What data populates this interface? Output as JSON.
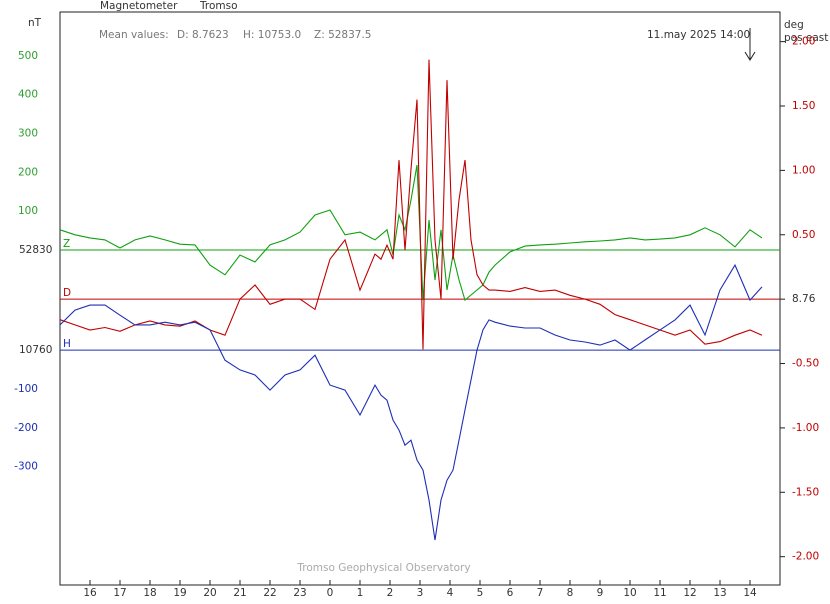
{
  "chart_data": {
    "type": "line",
    "title": "Magnetometer",
    "subtitle": "Tromso",
    "y_label": "nT",
    "y2_label": [
      "deg",
      "pos east"
    ],
    "mean_values": [
      "Mean values:",
      "D: 8.7623",
      "H: 10753.0",
      "Z: 52837.5"
    ],
    "timestamp": "11.may 2025 14:00",
    "credit": "Tromso Geophysical Observatory",
    "x": [
      15,
      15.5,
      16,
      16.5,
      17,
      17.5,
      18,
      18.5,
      19,
      19.5,
      20,
      20.5,
      21,
      21.5,
      22,
      22.5,
      23,
      23.5,
      24,
      24.5,
      25,
      25.5,
      25.7,
      25.9,
      26.1,
      26.3,
      26.5,
      26.7,
      26.9,
      27.1,
      27.3,
      27.5,
      27.7,
      27.9,
      28.1,
      28.3,
      28.5,
      28.7,
      28.9,
      29.1,
      29.3,
      29.5,
      30,
      30.5,
      31,
      31.5,
      32,
      32.5,
      33,
      33.5,
      34,
      34.5,
      35,
      35.5,
      36,
      36.5,
      37,
      37.5,
      38,
      38.4
    ],
    "xlim": [
      15,
      39
    ],
    "xticks": [
      16,
      17,
      18,
      19,
      20,
      21,
      22,
      23,
      {
        "value": 24,
        "label": "0"
      },
      {
        "value": 25,
        "label": "1"
      },
      {
        "value": 26,
        "label": "2"
      },
      {
        "value": 27,
        "label": "3"
      },
      {
        "value": 28,
        "label": "4"
      },
      {
        "value": 29,
        "label": "5"
      },
      {
        "value": 30,
        "label": "6"
      },
      {
        "value": 31,
        "label": "7"
      },
      {
        "value": 32,
        "label": "8"
      },
      {
        "value": 33,
        "label": "9"
      },
      {
        "value": 34,
        "label": "10"
      },
      {
        "value": 35,
        "label": "11"
      },
      {
        "value": 36,
        "label": "12"
      },
      {
        "value": 37,
        "label": "13"
      },
      {
        "value": 38,
        "label": "14"
      }
    ],
    "ylim": [
      -863,
      613
    ],
    "yticks": [
      500,
      400,
      300,
      200,
      100,
      {
        "value": 0,
        "label": "52830"
      },
      {
        "value": -258,
        "label": "10760"
      },
      {
        "value": -358,
        "label": "-100"
      },
      {
        "value": -458,
        "label": "-200"
      },
      {
        "value": -558,
        "label": "-300"
      }
    ],
    "ytick_colors": [
      "#2e9e2e",
      "#2e9e2e",
      "#2e9e2e",
      "#2e9e2e",
      "#2e9e2e",
      "#333333",
      "#333333",
      "#1d2fb5",
      "#1d2fb5",
      "#1d2fb5"
    ],
    "y2lim": [
      -2.22,
      2.23
    ],
    "y2ticks": [
      {
        "value": 2,
        "label": "2.00"
      },
      {
        "value": 1.5,
        "label": "1.50"
      },
      {
        "value": 1,
        "label": "1.00"
      },
      {
        "value": 0.5,
        "label": "0.50"
      },
      {
        "value": 0,
        "label": "8.76"
      },
      {
        "value": -0.5,
        "label": "-0.50"
      },
      {
        "value": -1,
        "label": "-1.00"
      },
      {
        "value": -1.5,
        "label": "-1.50"
      },
      {
        "value": -2,
        "label": "-2.00"
      }
    ],
    "y2tick_colors": [
      "#c00000",
      "#c00000",
      "#c00000",
      "#c00000",
      "#333333",
      "#c00000",
      "#c00000",
      "#c00000",
      "#c00000"
    ],
    "baselines": [
      {
        "name": "Z",
        "tick": "yticks.5",
        "color": "#10a010"
      },
      {
        "name": "D",
        "tick": "y2ticks.4",
        "color": "#c00000"
      },
      {
        "name": "H",
        "tick": "yticks.6",
        "color": "#1d2fb5"
      }
    ],
    "series": [
      {
        "name": "Z",
        "color": "#10a010",
        "values": [
          52,
          39,
          31,
          26,
          5,
          26,
          36,
          26,
          15,
          13,
          -39,
          -64,
          -13,
          -31,
          13,
          26,
          46,
          90,
          103,
          39,
          46,
          26,
          39,
          52,
          -13,
          90,
          52,
          129,
          219,
          -129,
          77,
          -77,
          52,
          -103,
          -13,
          -77,
          -129,
          -116,
          -103,
          -90,
          -57,
          -39,
          -5,
          10,
          13,
          15,
          18,
          21,
          23,
          26,
          31,
          26,
          28,
          31,
          39,
          57,
          39,
          8,
          52,
          31
        ]
      },
      {
        "name": "D",
        "color": "#c00000",
        "axis": "y2",
        "values": [
          -0.16,
          -0.2,
          -0.24,
          -0.22,
          -0.25,
          -0.2,
          -0.17,
          -0.2,
          -0.21,
          -0.17,
          -0.24,
          -0.28,
          0,
          0.11,
          -0.04,
          0,
          0,
          -0.08,
          0.31,
          0.46,
          0.07,
          0.35,
          0.31,
          0.42,
          0.31,
          1.08,
          0.38,
          1.01,
          1.55,
          -0.39,
          1.86,
          0.46,
          0,
          1.7,
          0.31,
          0.77,
          1.08,
          0.46,
          0.19,
          0.11,
          0.07,
          0.07,
          0.06,
          0.09,
          0.06,
          0.07,
          0.03,
          0,
          -0.04,
          -0.12,
          -0.16,
          -0.2,
          -0.24,
          -0.28,
          -0.24,
          -0.35,
          -0.33,
          -0.28,
          -0.24,
          -0.28
        ]
      },
      {
        "name": "H",
        "color": "#1d2fb5",
        "values": [
          -193,
          -155,
          -142,
          -142,
          -168,
          -193,
          -193,
          -186,
          -193,
          -186,
          -206,
          -284,
          -309,
          -322,
          -361,
          -322,
          -309,
          -271,
          -348,
          -361,
          -425,
          -348,
          -374,
          -387,
          -438,
          -464,
          -503,
          -490,
          -541,
          -567,
          -644,
          -747,
          -644,
          -593,
          -567,
          -490,
          -412,
          -335,
          -258,
          -206,
          -180,
          -186,
          -196,
          -201,
          -201,
          -219,
          -232,
          -237,
          -245,
          -232,
          -258,
          -232,
          -206,
          -180,
          -142,
          -219,
          -103,
          -39,
          -129,
          -95
        ]
      }
    ]
  }
}
